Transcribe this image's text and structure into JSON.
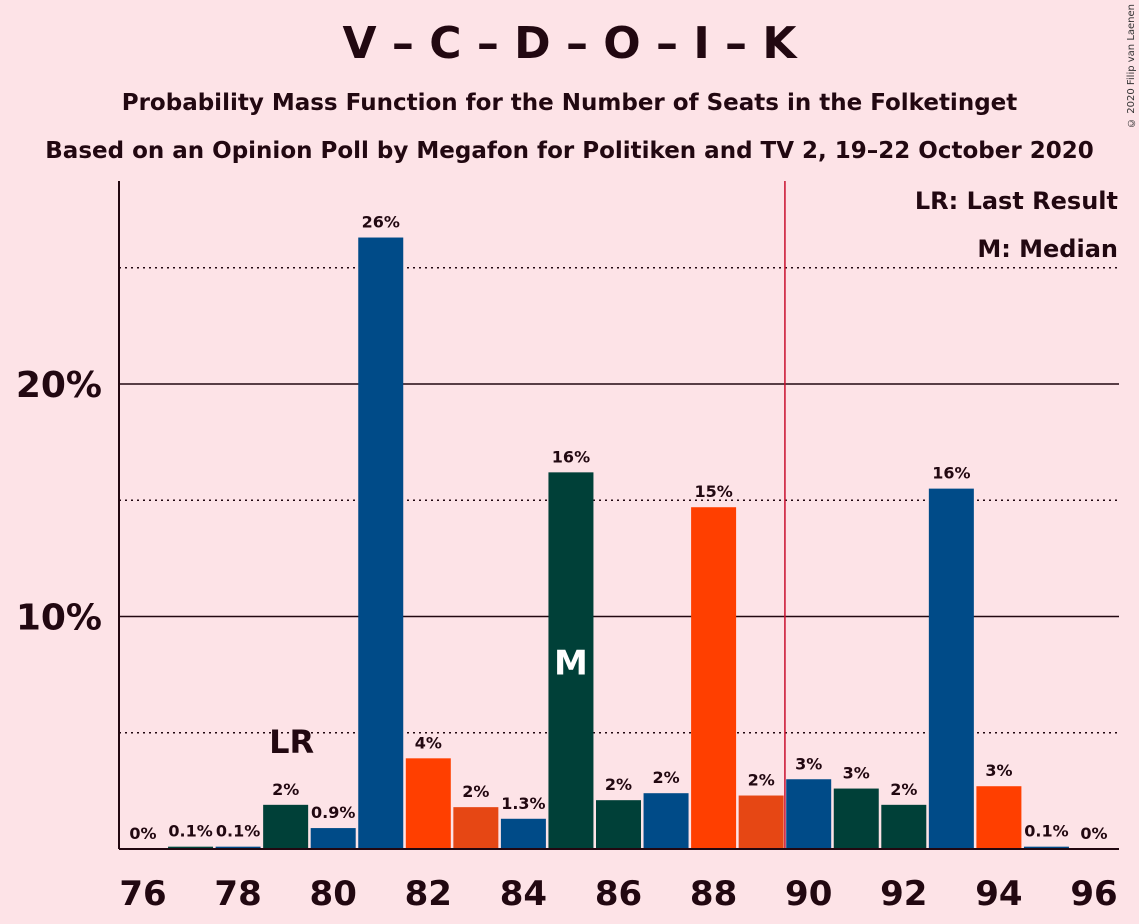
{
  "title": "V – C – D – O – I – K",
  "subtitle": "Probability Mass Function for the Number of Seats in the Folketinget",
  "subtitle2": "Based on an Opinion Poll by Megafon for Politiken and TV 2, 19–22 October 2020",
  "credit": "© 2020 Filip van Laenen",
  "legend": {
    "last_result": "LR: Last Result",
    "median": "M: Median"
  },
  "chart_data": {
    "type": "bar",
    "x": [
      76,
      77,
      78,
      79,
      80,
      81,
      82,
      83,
      84,
      85,
      86,
      87,
      88,
      89,
      90,
      91,
      92,
      93,
      94,
      95,
      96
    ],
    "values": [
      0,
      0.1,
      0.1,
      1.9,
      0.9,
      26.3,
      3.9,
      1.8,
      1.3,
      16.2,
      2.1,
      2.4,
      14.7,
      2.3,
      3.0,
      2.6,
      1.9,
      15.5,
      2.7,
      0.1,
      0
    ],
    "labels": [
      "0%",
      "0.1%",
      "0.1%",
      "2%",
      "0.9%",
      "26%",
      "4%",
      "2%",
      "1.3%",
      "16%",
      "2%",
      "2%",
      "15%",
      "2%",
      "3%",
      "3%",
      "2%",
      "16%",
      "3%",
      "0.1%",
      "0%"
    ],
    "colors": [
      "#004b88",
      "#00473d",
      "#004b88",
      "#004038",
      "#004b88",
      "#004b88",
      "#ff3f00",
      "#e64714",
      "#004b88",
      "#004038",
      "#004038",
      "#004b88",
      "#ff3f00",
      "#e64714",
      "#004b88",
      "#004038",
      "#004038",
      "#004b88",
      "#ff3f00",
      "#004b88",
      "#004b88"
    ],
    "x_ticks": [
      "76",
      "78",
      "80",
      "82",
      "84",
      "86",
      "88",
      "90",
      "92",
      "94",
      "96"
    ],
    "y_ticks": [
      "10%",
      "20%"
    ],
    "ylim": [
      0,
      28.5
    ],
    "last_result": {
      "x": 79,
      "label": "LR"
    },
    "median": {
      "x": 85,
      "label": "M"
    },
    "majority_line": 89.5,
    "gridlines_dotted": [
      5,
      15,
      25
    ],
    "gridlines_solid": [
      10,
      20
    ]
  }
}
